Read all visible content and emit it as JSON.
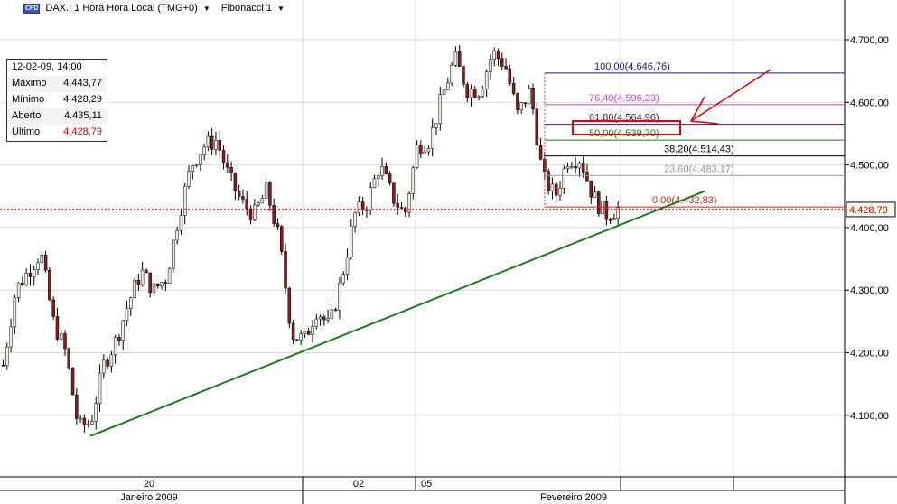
{
  "header": {
    "badge": "CFD",
    "instrument": "DAX.I 1 Hora Hora Local (TMG+0)",
    "study": "Fibonacci 1"
  },
  "info": {
    "date": "12-02-09, 14:00",
    "rows": [
      {
        "label": "Máximo",
        "value": "4.443,77"
      },
      {
        "label": "Mínimo",
        "value": "4.428,29"
      },
      {
        "label": "Aberto",
        "value": "4.435,11"
      },
      {
        "label": "Último",
        "value": "4.428,79",
        "color": "#cc0000"
      }
    ]
  },
  "chart_data": {
    "type": "candlestick",
    "y_ticks": [
      {
        "v": 4100,
        "label": "4.100,00"
      },
      {
        "v": 4200,
        "label": "4.200,00"
      },
      {
        "v": 4300,
        "label": "4.300,00"
      },
      {
        "v": 4400,
        "label": "4.400,00"
      },
      {
        "v": 4500,
        "label": "4.500,00"
      },
      {
        "v": 4600,
        "label": "4.600,00"
      },
      {
        "v": 4700,
        "label": "4.700,00"
      }
    ],
    "x_day_labels": [
      "20",
      "02",
      "05"
    ],
    "x_month_labels": [
      "Janeiro 2009",
      "Fevereiro 2009"
    ],
    "last_price": {
      "value": 4428.79,
      "label": "4.428,79",
      "color": "#cc0000"
    },
    "price_path": [
      4180,
      4300,
      4330,
      4360,
      4250,
      4200,
      4080,
      4090,
      4180,
      4220,
      4280,
      4330,
      4300,
      4320,
      4420,
      4500,
      4530,
      4540,
      4480,
      4440,
      4420,
      4460,
      4380,
      4230,
      4220,
      4270,
      4240,
      4320,
      4420,
      4440,
      4500,
      4450,
      4420,
      4530,
      4540,
      4610,
      4670,
      4620,
      4620,
      4680,
      4660,
      4580,
      4620,
      4480,
      4450,
      4510,
      4510,
      4450,
      4420,
      4430
    ],
    "fibonacci": [
      {
        "level": 100.0,
        "price": 4646.76,
        "label": "100,00(4.646,76)",
        "color": "#1a1a80"
      },
      {
        "level": 76.4,
        "price": 4596.23,
        "label": "76,40(4.596,23)",
        "color": "#cc44cc"
      },
      {
        "level": 61.8,
        "price": 4564.96,
        "label": "61,80(4.564,96)",
        "color": "#551155"
      },
      {
        "level": 50.0,
        "price": 4539.7,
        "label": "50,00(4.539,70)",
        "color": "#1a7a1a"
      },
      {
        "level": 38.2,
        "price": 4514.43,
        "label": "38,20(4.514,43)",
        "color": "#000000"
      },
      {
        "level": 23.6,
        "price": 4483.17,
        "label": "23,60(4.483,17)",
        "color": "#999999"
      },
      {
        "level": 0.0,
        "price": 4432.83,
        "label": "0,00(4.432,83)",
        "color": "#cc2222"
      }
    ],
    "trendline": {
      "from": 4067,
      "to": 4458,
      "color": "#1e7a1e"
    },
    "highlight_level": 50.0
  }
}
